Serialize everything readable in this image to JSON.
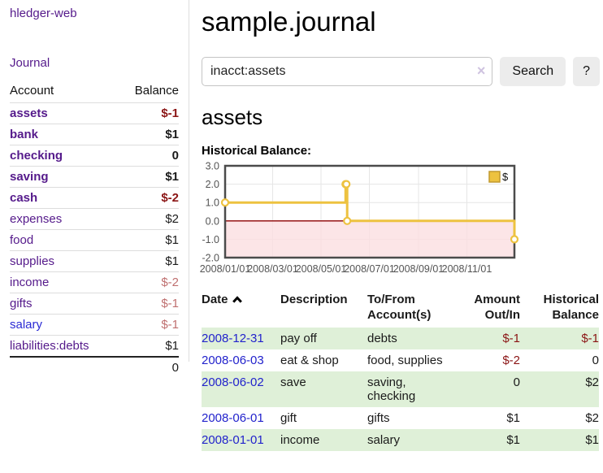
{
  "app": {
    "brand": "hledger-web"
  },
  "sidebar": {
    "nav_journal": "Journal",
    "headers": {
      "account": "Account",
      "balance": "Balance"
    },
    "rows": [
      {
        "name": "assets",
        "balance": "$-1"
      },
      {
        "name": "bank",
        "balance": "$1"
      },
      {
        "name": "checking",
        "balance": "0"
      },
      {
        "name": "saving",
        "balance": "$1"
      },
      {
        "name": "cash",
        "balance": "$-2"
      },
      {
        "name": "expenses",
        "balance": "$2"
      },
      {
        "name": "food",
        "balance": "$1"
      },
      {
        "name": "supplies",
        "balance": "$1"
      },
      {
        "name": "income",
        "balance": "$-2"
      },
      {
        "name": "gifts",
        "balance": "$-1"
      },
      {
        "name": "salary",
        "balance": "$-1"
      },
      {
        "name": "liabilities:debts",
        "balance": "$1"
      }
    ],
    "total": "0"
  },
  "main": {
    "title": "sample.journal",
    "search": {
      "value": "inacct:assets",
      "clear_icon": "×",
      "button_label": "Search",
      "help_label": "?"
    },
    "account_heading": "assets",
    "chart_title": "Historical Balance:"
  },
  "chart_data": {
    "type": "line",
    "style": "steps",
    "title": "Historical Balance:",
    "series": [
      {
        "name": "$",
        "color": "#edc240",
        "points": [
          [
            "2008-01-01",
            1
          ],
          [
            "2008-06-01",
            2
          ],
          [
            "2008-06-02",
            2
          ],
          [
            "2008-06-03",
            0
          ],
          [
            "2008-12-31",
            -1
          ]
        ]
      }
    ],
    "xlim": [
      "2008-01-01",
      "2008-12-31"
    ],
    "ylim": [
      -2,
      3
    ],
    "yticks": [
      "3.0",
      "2.0",
      "1.0",
      "0.0",
      "-1.0",
      "-2.0"
    ],
    "xticks": [
      "2008/01/01",
      "2008/03/01",
      "2008/05/01",
      "2008/07/01",
      "2008/09/01",
      "2008/11/01"
    ],
    "grid": true,
    "legend_position": "top-right",
    "negative_fill": "#fbdee1",
    "zero_line_color": "#8b0000"
  },
  "register": {
    "headers": {
      "date": "Date",
      "description": "Description",
      "account1": "To/From",
      "account2": "Account(s)",
      "amount1": "Amount",
      "amount2": "Out/In",
      "balance1": "Historical",
      "balance2": "Balance"
    },
    "rows": [
      {
        "date": "2008-12-31",
        "description": "pay off",
        "accounts": "debts",
        "amount": "$-1",
        "balance": "$-1"
      },
      {
        "date": "2008-06-03",
        "description": "eat & shop",
        "accounts": "food, supplies",
        "amount": "$-2",
        "balance": "0"
      },
      {
        "date": "2008-06-02",
        "description": "save",
        "accounts": "saving, checking",
        "amount": "0",
        "balance": "$2"
      },
      {
        "date": "2008-06-01",
        "description": "gift",
        "accounts": "gifts",
        "amount": "$1",
        "balance": "$2"
      },
      {
        "date": "2008-01-01",
        "description": "income",
        "accounts": "salary",
        "amount": "$1",
        "balance": "$1"
      }
    ]
  },
  "colors": {
    "link_purple": "#551a8b",
    "link_blue": "#2a2ad4",
    "date_link_blue": "#2222cc",
    "negative_strong": "#8b1515",
    "negative_soft": "#bf6f6f",
    "row_stripe_green": "#dff0d8",
    "chart_line_gold": "#edc240",
    "chart_negative_fill": "#fbdee1",
    "chart_zero_line": "#8b0000",
    "chart_border": "#4b4b4b",
    "divider": "#dddddd"
  }
}
